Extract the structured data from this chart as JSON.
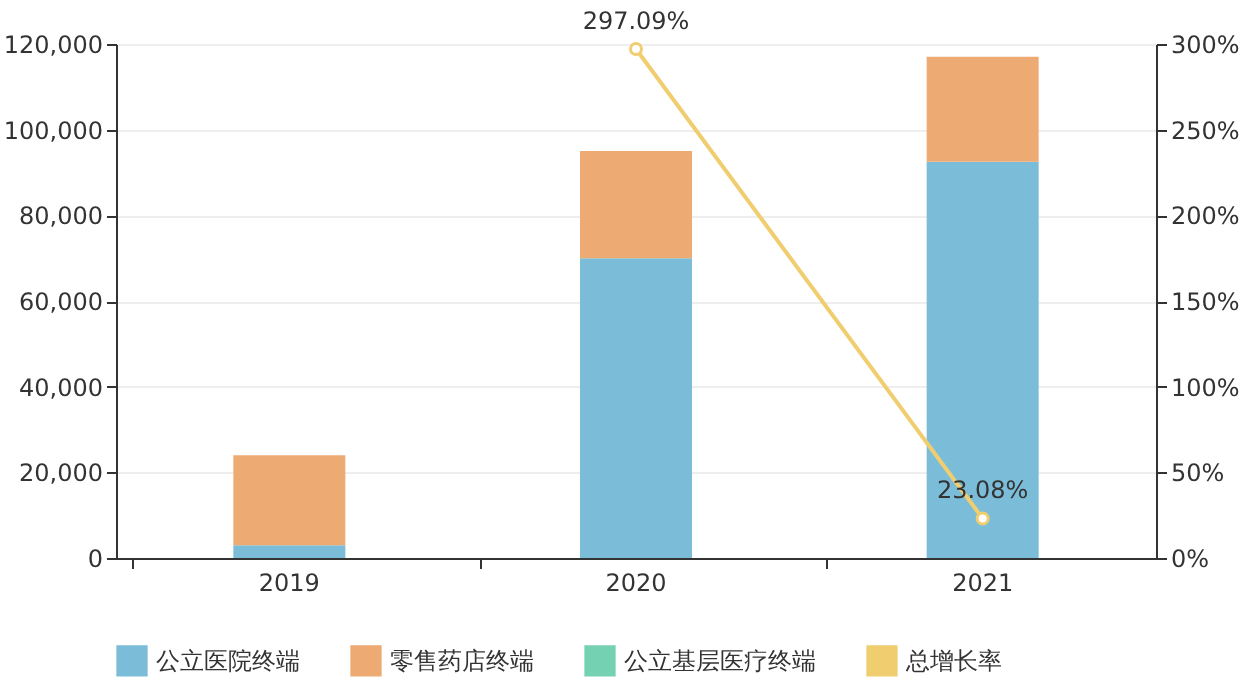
{
  "chart_data": {
    "type": "bar",
    "stacked": true,
    "categories": [
      "2019",
      "2020",
      "2021"
    ],
    "series": [
      {
        "name": "公立医院终端",
        "color": "#7bbdd9",
        "values": [
          3000,
          70000,
          92500
        ]
      },
      {
        "name": "零售药店终端",
        "color": "#edab73",
        "values": [
          21000,
          25000,
          24500
        ]
      },
      {
        "name": "公立基层医疗终端",
        "color": "#74d2b2",
        "values": [
          null,
          null,
          null
        ]
      },
      {
        "name": "总增长率",
        "type": "line",
        "axis": "y2",
        "color": "#f0cd6e",
        "marker": "circle",
        "values": [
          null,
          297.09,
          23.08
        ],
        "value_labels": [
          null,
          "297.09%",
          "23.08%"
        ]
      }
    ],
    "ylim": [
      0,
      120000
    ],
    "yticks": [
      {
        "value": 0,
        "label": "0"
      },
      {
        "value": 20000,
        "label": "20,000"
      },
      {
        "value": 40000,
        "label": "40,000"
      },
      {
        "value": 60000,
        "label": "60,000"
      },
      {
        "value": 80000,
        "label": "80,000"
      },
      {
        "value": 100000,
        "label": "100,000"
      },
      {
        "value": 120000,
        "label": "120,000"
      }
    ],
    "y2lim": [
      0,
      300
    ],
    "y2ticks": [
      {
        "value": 0,
        "label": "0%"
      },
      {
        "value": 50,
        "label": "50%"
      },
      {
        "value": 100,
        "label": "100%"
      },
      {
        "value": 150,
        "label": "150%"
      },
      {
        "value": 200,
        "label": "200%"
      },
      {
        "value": 250,
        "label": "250%"
      },
      {
        "value": 300,
        "label": "300%"
      }
    ],
    "grid": "y",
    "legend": "bottom"
  }
}
